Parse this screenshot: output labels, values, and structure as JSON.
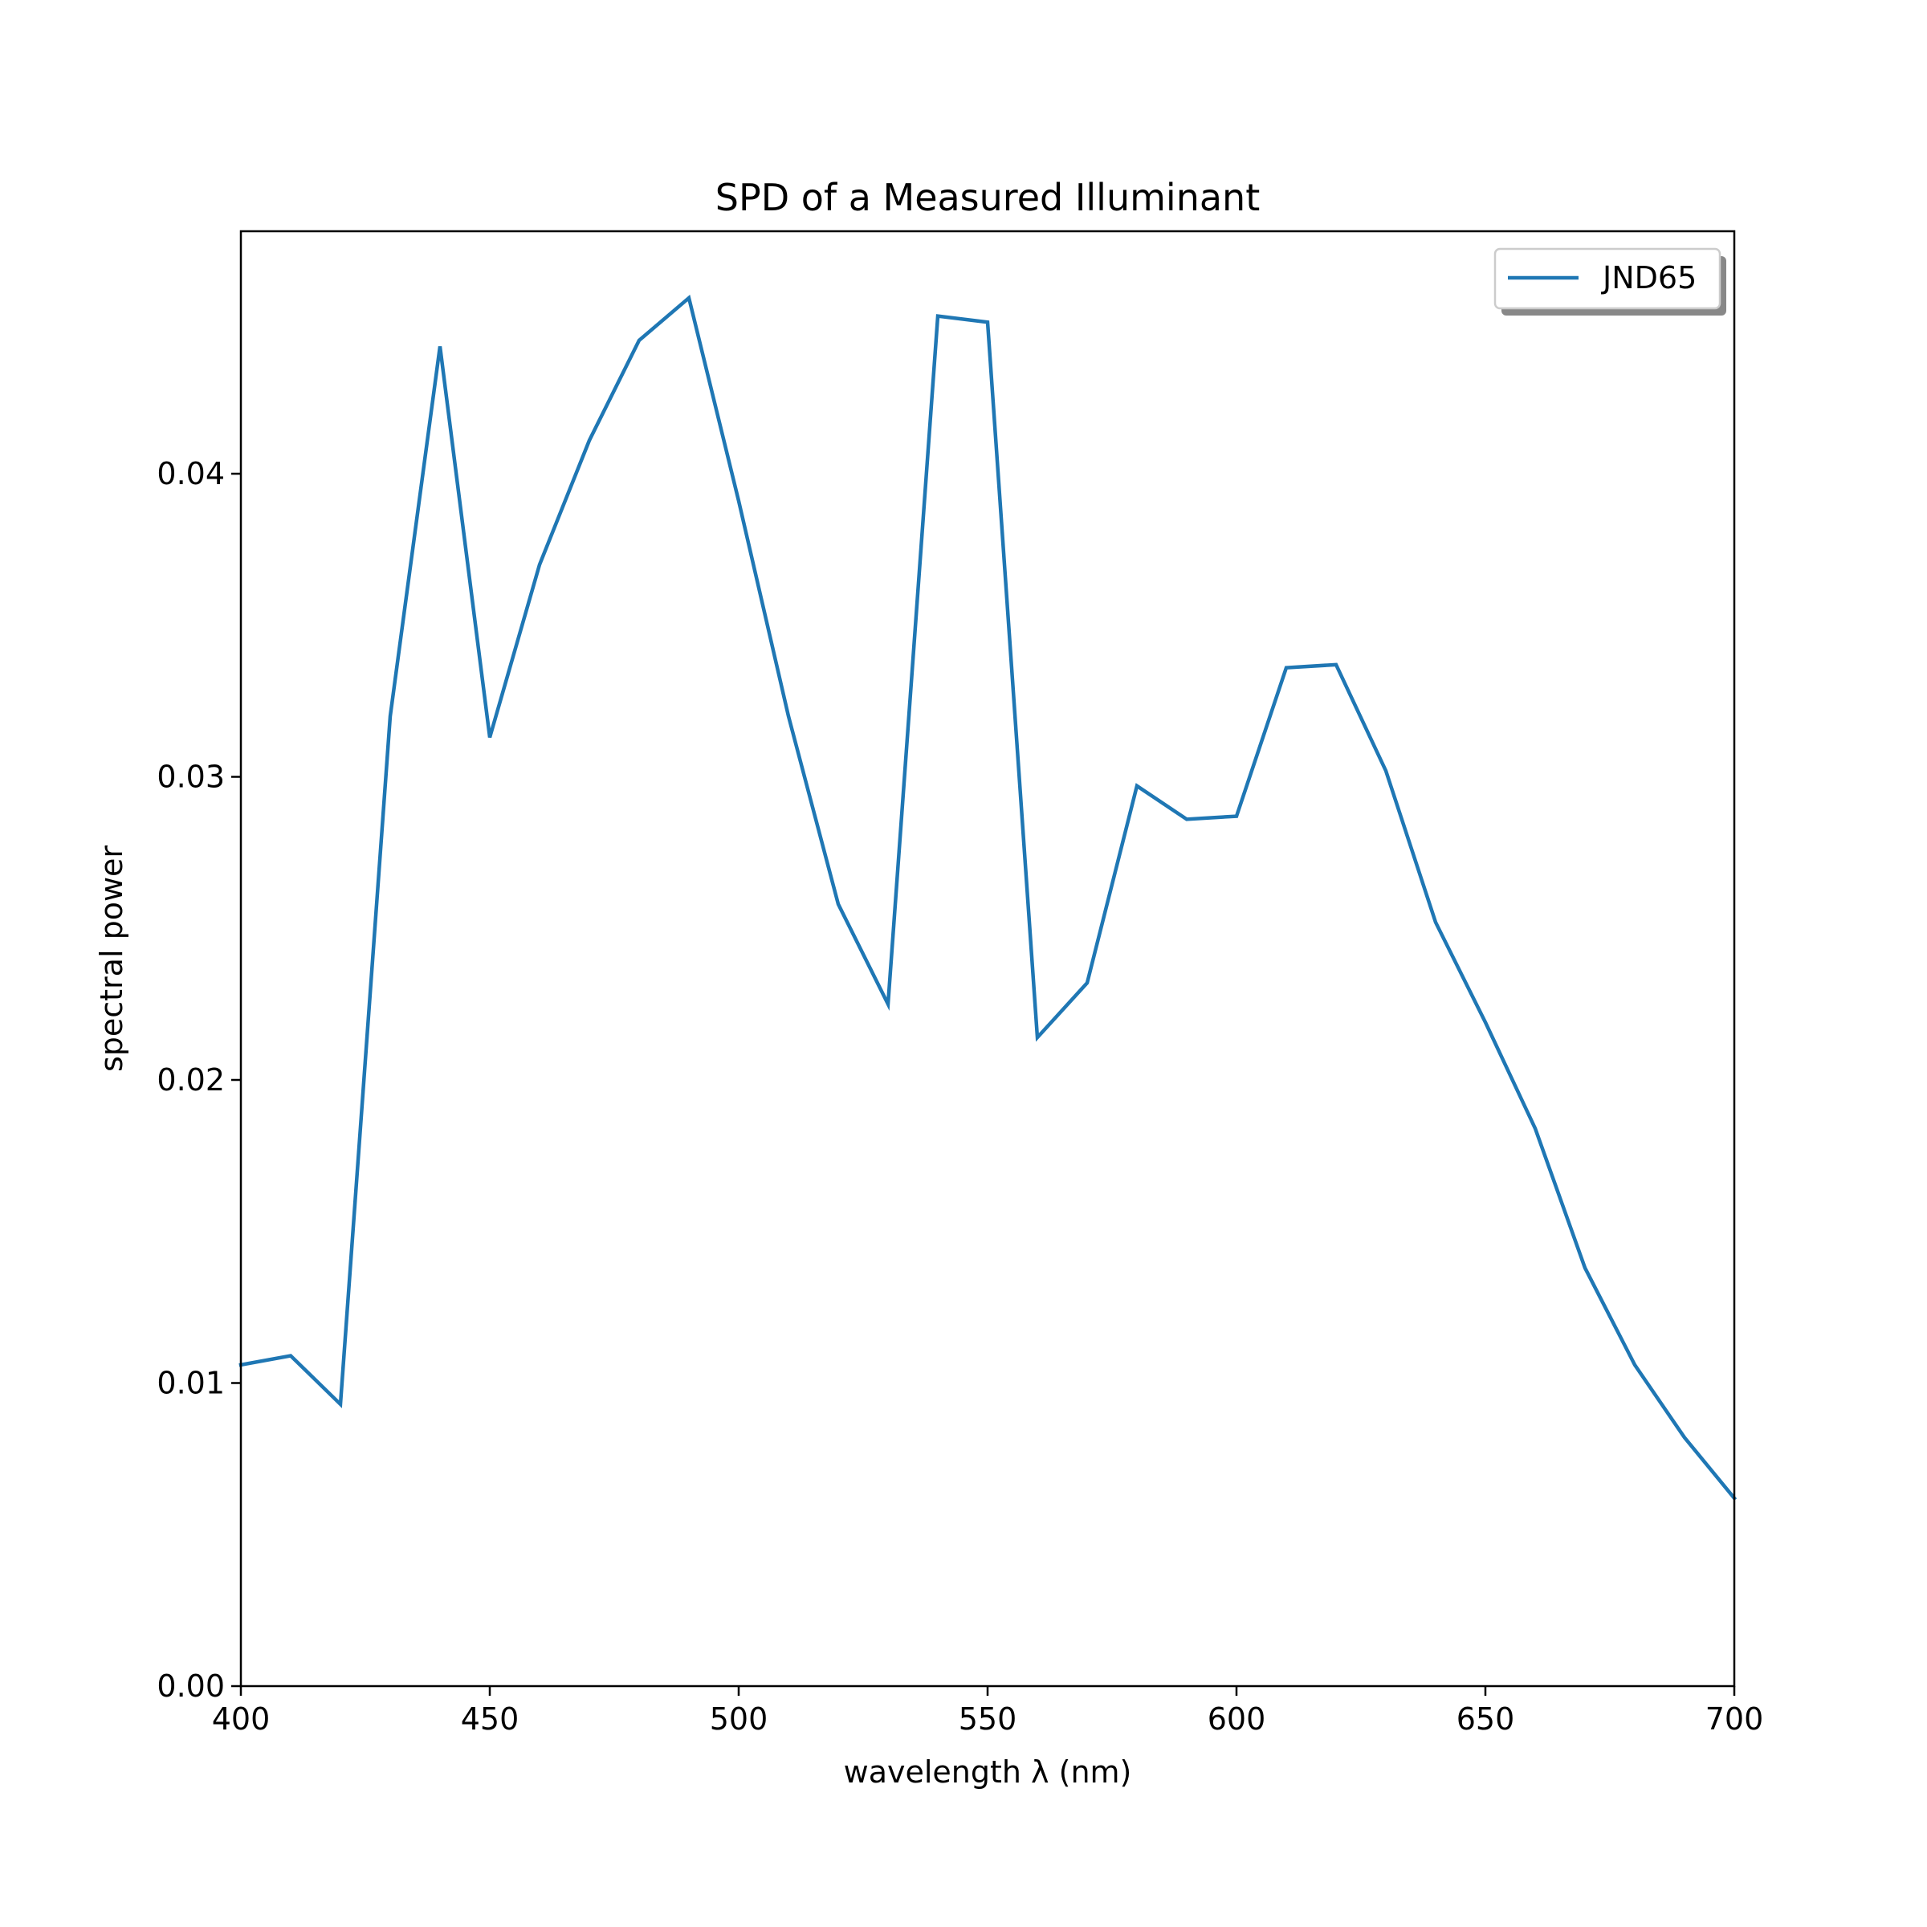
{
  "chart_data": {
    "type": "line",
    "title": "SPD of a Measured Illuminant",
    "xlabel": "wavelength λ (nm)",
    "ylabel": "spectral power",
    "xlim": [
      400,
      700
    ],
    "ylim": [
      0,
      0.048
    ],
    "x_ticks": [
      400,
      450,
      500,
      550,
      600,
      650,
      700
    ],
    "x_tick_labels": [
      "400",
      "450",
      "500",
      "550",
      "600",
      "650",
      "700"
    ],
    "y_ticks": [
      0,
      0.01,
      0.02,
      0.03,
      0.04
    ],
    "y_tick_labels": [
      "0.00",
      "0.01",
      "0.02",
      "0.03",
      "0.04"
    ],
    "grid": false,
    "legend_position": "top-right",
    "series": [
      {
        "name": "JND65",
        "color": "#1f77b4",
        "x": [
          400,
          410,
          420,
          430,
          440,
          450,
          460,
          470,
          480,
          490,
          500,
          510,
          520,
          530,
          540,
          550,
          560,
          570,
          580,
          590,
          600,
          610,
          620,
          630,
          640,
          650,
          660,
          670,
          680,
          690,
          700
        ],
        "y": [
          0.0106,
          0.0109,
          0.0093,
          0.032,
          0.0442,
          0.0313,
          0.037,
          0.0411,
          0.0444,
          0.0458,
          0.0391,
          0.032,
          0.0258,
          0.0225,
          0.0452,
          0.045,
          0.0214,
          0.0232,
          0.0297,
          0.0286,
          0.0287,
          0.0336,
          0.0337,
          0.0302,
          0.0252,
          0.0219,
          0.0184,
          0.0138,
          0.0106,
          0.0082,
          0.0062
        ]
      }
    ]
  }
}
